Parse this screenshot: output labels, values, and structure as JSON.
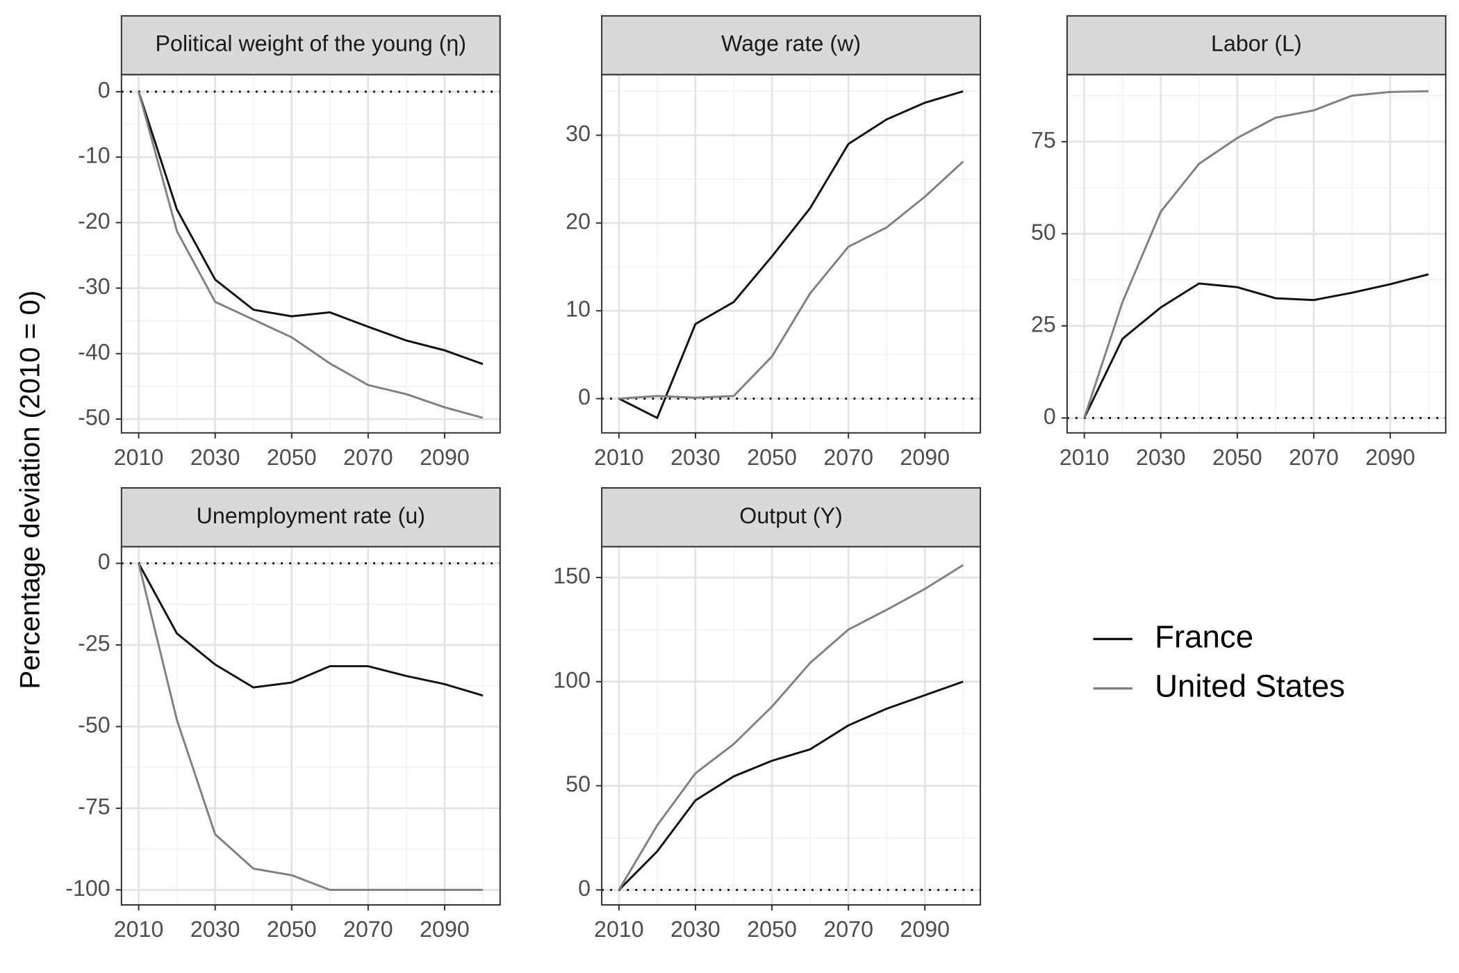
{
  "y_label": "Percentage deviation (2010 = 0)",
  "chart_data": [
    {
      "type": "line",
      "title": "Political weight of the young (η)",
      "x": [
        2010,
        2020,
        2030,
        2040,
        2050,
        2060,
        2070,
        2080,
        2090,
        2100
      ],
      "xlim": [
        2005.5,
        2104.5
      ],
      "xticks": [
        2010,
        2030,
        2050,
        2070,
        2090
      ],
      "ylim": [
        -52.1,
        2.6
      ],
      "yticks": [
        0,
        -10,
        -20,
        -30,
        -40,
        -50
      ],
      "grid": true,
      "reference_line": 0,
      "series": [
        {
          "name": "France",
          "color": "#111111",
          "values": [
            0,
            -18,
            -28.7,
            -33.3,
            -34.3,
            -33.7,
            -35.9,
            -38,
            -39.5,
            -41.6
          ]
        },
        {
          "name": "United States",
          "color": "#808080",
          "values": [
            0,
            -21.3,
            -32.1,
            -34.8,
            -37.5,
            -41.5,
            -44.8,
            -46.2,
            -48.2,
            -49.8
          ]
        }
      ]
    },
    {
      "type": "line",
      "title": "Wage rate (w)",
      "x": [
        2010,
        2020,
        2030,
        2040,
        2050,
        2060,
        2070,
        2080,
        2090,
        2100
      ],
      "xlim": [
        2005.5,
        2104.5
      ],
      "xticks": [
        2010,
        2030,
        2050,
        2070,
        2090
      ],
      "ylim": [
        -3.9,
        36.9
      ],
      "yticks": [
        0,
        10,
        20,
        30
      ],
      "grid": true,
      "reference_line": 0,
      "series": [
        {
          "name": "France",
          "color": "#111111",
          "values": [
            0,
            -2.2,
            8.5,
            11,
            16.2,
            21.7,
            29,
            31.8,
            33.7,
            35
          ]
        },
        {
          "name": "United States",
          "color": "#808080",
          "values": [
            0,
            0.3,
            0.1,
            0.3,
            4.8,
            12,
            17.3,
            19.5,
            23,
            27
          ]
        }
      ]
    },
    {
      "type": "line",
      "title": "Labor (L)",
      "x": [
        2010,
        2020,
        2030,
        2040,
        2050,
        2060,
        2070,
        2080,
        2090,
        2100
      ],
      "xlim": [
        2005.5,
        2104.5
      ],
      "xticks": [
        2010,
        2030,
        2050,
        2070,
        2090
      ],
      "ylim": [
        -4.05,
        93.2
      ],
      "yticks": [
        0,
        25,
        50,
        75
      ],
      "grid": true,
      "reference_line": 0,
      "series": [
        {
          "name": "France",
          "color": "#111111",
          "values": [
            0,
            21.5,
            30,
            36.5,
            35.5,
            32.5,
            32,
            34,
            36.3,
            39
          ]
        },
        {
          "name": "United States",
          "color": "#808080",
          "values": [
            0,
            31.5,
            56,
            69,
            76,
            81.5,
            83.5,
            87.5,
            88.5,
            88.7
          ]
        }
      ]
    },
    {
      "type": "line",
      "title": "Unemployment rate (u)",
      "x": [
        2010,
        2020,
        2030,
        2040,
        2050,
        2060,
        2070,
        2080,
        2090,
        2100
      ],
      "xlim": [
        2005.5,
        2104.5
      ],
      "xticks": [
        2010,
        2030,
        2050,
        2070,
        2090
      ],
      "ylim": [
        -104.6,
        5.1
      ],
      "yticks": [
        0,
        -25,
        -50,
        -75,
        -100
      ],
      "grid": true,
      "reference_line": 0,
      "series": [
        {
          "name": "France",
          "color": "#111111",
          "values": [
            0,
            -21.5,
            -31,
            -38,
            -36.5,
            -31.5,
            -31.5,
            -34.5,
            -37,
            -40.5
          ]
        },
        {
          "name": "United States",
          "color": "#808080",
          "values": [
            0,
            -48,
            -83,
            -93.5,
            -95.5,
            -100,
            -100,
            -100,
            -100,
            -100
          ]
        }
      ]
    },
    {
      "type": "line",
      "title": "Output (Y)",
      "x": [
        2010,
        2020,
        2030,
        2040,
        2050,
        2060,
        2070,
        2080,
        2090,
        2100
      ],
      "xlim": [
        2005.5,
        2104.5
      ],
      "xticks": [
        2010,
        2030,
        2050,
        2070,
        2090
      ],
      "ylim": [
        -7.2,
        164.8
      ],
      "yticks": [
        0,
        50,
        100,
        150
      ],
      "grid": true,
      "reference_line": 0,
      "series": [
        {
          "name": "France",
          "color": "#111111",
          "values": [
            0,
            18.5,
            43,
            54.5,
            62,
            67.5,
            79,
            87,
            93.5,
            100
          ]
        },
        {
          "name": "United States",
          "color": "#808080",
          "values": [
            0,
            31,
            56,
            70,
            88,
            109,
            125,
            134.5,
            144.5,
            156
          ]
        }
      ]
    }
  ]
}
